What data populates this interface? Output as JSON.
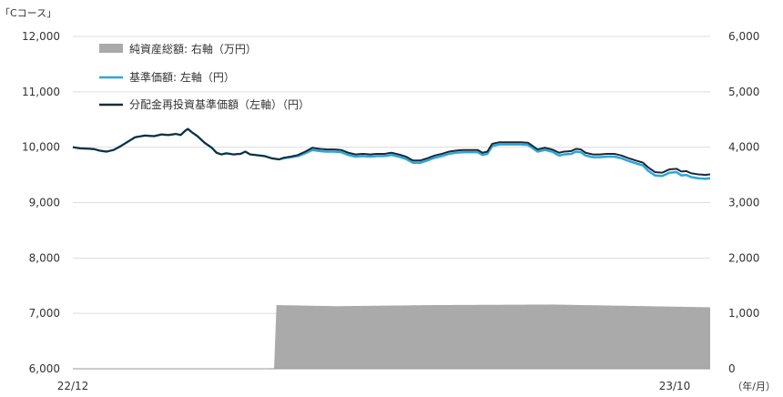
{
  "chart_data": {
    "type": "line",
    "title": "「Cコース」",
    "x_tick_labels": [
      "22/12",
      "23/10"
    ],
    "x_unit_label": "（年/月）",
    "left_axis": {
      "min": 6000,
      "max": 12000,
      "ticks": [
        "6,000",
        "7,000",
        "8,000",
        "9,000",
        "10,000",
        "11,000",
        "12,000"
      ]
    },
    "right_axis": {
      "min": 0,
      "max": 6000,
      "ticks": [
        "0",
        "1,000",
        "2,000",
        "3,000",
        "4,000",
        "5,000",
        "6,000"
      ]
    },
    "legend": {
      "placement": "top-left",
      "items": [
        {
          "key": "net_assets",
          "label": "純資産総額: 右軸（万円）"
        },
        {
          "key": "nav",
          "label": "基準価額: 左軸（円）"
        },
        {
          "key": "nav_reinvested",
          "label": "分配金再投資基準価額（左軸）（円）"
        }
      ]
    },
    "colors": {
      "net_assets": "#aaaaaa",
      "nav": "#2aa6dc",
      "nav_reinvested": "#1b2a36",
      "grid": "#dddddd"
    },
    "grid": "horizontal",
    "num_days": 217,
    "series": {
      "nav_reinvested": [
        [
          0,
          10000
        ],
        [
          3,
          9980
        ],
        [
          6,
          9975
        ],
        [
          9,
          9965
        ],
        [
          11,
          9940
        ],
        [
          14,
          9920
        ],
        [
          17,
          9950
        ],
        [
          20,
          10020
        ],
        [
          23,
          10100
        ],
        [
          26,
          10180
        ],
        [
          30,
          10210
        ],
        [
          34,
          10200
        ],
        [
          37,
          10230
        ],
        [
          40,
          10220
        ],
        [
          43,
          10240
        ],
        [
          45,
          10220
        ],
        [
          47,
          10300
        ],
        [
          48,
          10330
        ],
        [
          50,
          10260
        ],
        [
          52,
          10200
        ],
        [
          55,
          10080
        ],
        [
          58,
          9990
        ],
        [
          60,
          9900
        ],
        [
          62,
          9870
        ],
        [
          64,
          9890
        ],
        [
          67,
          9870
        ],
        [
          70,
          9880
        ],
        [
          72,
          9920
        ],
        [
          74,
          9870
        ],
        [
          76,
          9860
        ],
        [
          80,
          9840
        ],
        [
          83,
          9800
        ],
        [
          86,
          9780
        ],
        [
          88,
          9810
        ],
        [
          91,
          9830
        ],
        [
          94,
          9860
        ],
        [
          97,
          9920
        ],
        [
          100,
          9990
        ],
        [
          103,
          9970
        ],
        [
          106,
          9960
        ],
        [
          109,
          9960
        ],
        [
          112,
          9950
        ],
        [
          115,
          9900
        ],
        [
          118,
          9870
        ],
        [
          121,
          9880
        ],
        [
          124,
          9870
        ],
        [
          127,
          9880
        ],
        [
          130,
          9880
        ],
        [
          133,
          9900
        ],
        [
          136,
          9870
        ],
        [
          139,
          9830
        ],
        [
          142,
          9760
        ],
        [
          145,
          9760
        ],
        [
          148,
          9800
        ],
        [
          151,
          9850
        ],
        [
          154,
          9880
        ],
        [
          157,
          9920
        ],
        [
          160,
          9940
        ],
        [
          163,
          9950
        ],
        [
          166,
          9950
        ],
        [
          169,
          9950
        ],
        [
          171,
          9900
        ],
        [
          173,
          9920
        ],
        [
          175,
          10060
        ],
        [
          178,
          10090
        ],
        [
          181,
          10090
        ],
        [
          184,
          10090
        ],
        [
          187,
          10090
        ],
        [
          190,
          10080
        ],
        [
          192,
          10020
        ],
        [
          194,
          9960
        ],
        [
          197,
          9990
        ],
        [
          200,
          9960
        ],
        [
          203,
          9900
        ],
        [
          205,
          9920
        ],
        [
          208,
          9930
        ],
        [
          210,
          9970
        ],
        [
          212,
          9960
        ],
        [
          214,
          9900
        ],
        [
          217,
          9870
        ],
        [
          220,
          9870
        ],
        [
          223,
          9880
        ],
        [
          226,
          9880
        ],
        [
          229,
          9850
        ],
        [
          232,
          9800
        ],
        [
          235,
          9760
        ],
        [
          238,
          9720
        ],
        [
          240,
          9640
        ],
        [
          243,
          9550
        ],
        [
          246,
          9540
        ],
        [
          249,
          9600
        ],
        [
          252,
          9610
        ],
        [
          254,
          9560
        ],
        [
          256,
          9570
        ],
        [
          258,
          9530
        ],
        [
          261,
          9510
        ],
        [
          264,
          9500
        ],
        [
          266,
          9510
        ]
      ],
      "nav": [
        [
          0,
          10000
        ],
        [
          3,
          9980
        ],
        [
          6,
          9975
        ],
        [
          9,
          9965
        ],
        [
          11,
          9940
        ],
        [
          14,
          9920
        ],
        [
          17,
          9950
        ],
        [
          20,
          10020
        ],
        [
          23,
          10100
        ],
        [
          26,
          10180
        ],
        [
          30,
          10210
        ],
        [
          34,
          10200
        ],
        [
          37,
          10230
        ],
        [
          40,
          10220
        ],
        [
          43,
          10240
        ],
        [
          45,
          10220
        ],
        [
          47,
          10300
        ],
        [
          48,
          10330
        ],
        [
          50,
          10260
        ],
        [
          52,
          10200
        ],
        [
          55,
          10080
        ],
        [
          58,
          9990
        ],
        [
          60,
          9900
        ],
        [
          62,
          9870
        ],
        [
          64,
          9890
        ],
        [
          67,
          9870
        ],
        [
          70,
          9880
        ],
        [
          72,
          9920
        ],
        [
          74,
          9870
        ],
        [
          76,
          9860
        ],
        [
          80,
          9840
        ],
        [
          83,
          9800
        ],
        [
          86,
          9780
        ],
        [
          88,
          9800
        ],
        [
          91,
          9820
        ],
        [
          94,
          9840
        ],
        [
          97,
          9890
        ],
        [
          100,
          9950
        ],
        [
          103,
          9930
        ],
        [
          106,
          9920
        ],
        [
          109,
          9920
        ],
        [
          112,
          9910
        ],
        [
          115,
          9860
        ],
        [
          118,
          9830
        ],
        [
          121,
          9840
        ],
        [
          124,
          9830
        ],
        [
          127,
          9840
        ],
        [
          130,
          9840
        ],
        [
          133,
          9860
        ],
        [
          136,
          9830
        ],
        [
          139,
          9790
        ],
        [
          142,
          9720
        ],
        [
          145,
          9720
        ],
        [
          148,
          9760
        ],
        [
          151,
          9810
        ],
        [
          154,
          9840
        ],
        [
          157,
          9880
        ],
        [
          160,
          9900
        ],
        [
          163,
          9910
        ],
        [
          166,
          9910
        ],
        [
          169,
          9910
        ],
        [
          171,
          9860
        ],
        [
          173,
          9880
        ],
        [
          175,
          10020
        ],
        [
          178,
          10050
        ],
        [
          181,
          10050
        ],
        [
          184,
          10050
        ],
        [
          187,
          10050
        ],
        [
          190,
          10040
        ],
        [
          192,
          9980
        ],
        [
          194,
          9920
        ],
        [
          197,
          9950
        ],
        [
          200,
          9920
        ],
        [
          203,
          9850
        ],
        [
          205,
          9870
        ],
        [
          208,
          9880
        ],
        [
          210,
          9920
        ],
        [
          212,
          9910
        ],
        [
          214,
          9850
        ],
        [
          217,
          9820
        ],
        [
          220,
          9820
        ],
        [
          223,
          9830
        ],
        [
          226,
          9830
        ],
        [
          229,
          9800
        ],
        [
          232,
          9750
        ],
        [
          235,
          9710
        ],
        [
          238,
          9670
        ],
        [
          240,
          9580
        ],
        [
          243,
          9490
        ],
        [
          246,
          9480
        ],
        [
          249,
          9540
        ],
        [
          252,
          9550
        ],
        [
          254,
          9490
        ],
        [
          256,
          9500
        ],
        [
          258,
          9460
        ],
        [
          261,
          9440
        ],
        [
          264,
          9430
        ],
        [
          266,
          9440
        ]
      ],
      "net_assets": [
        [
          0,
          5
        ],
        [
          80,
          8
        ],
        [
          84,
          10
        ],
        [
          85,
          1150
        ],
        [
          110,
          1130
        ],
        [
          150,
          1150
        ],
        [
          200,
          1160
        ],
        [
          240,
          1130
        ],
        [
          266,
          1110
        ]
      ]
    }
  }
}
